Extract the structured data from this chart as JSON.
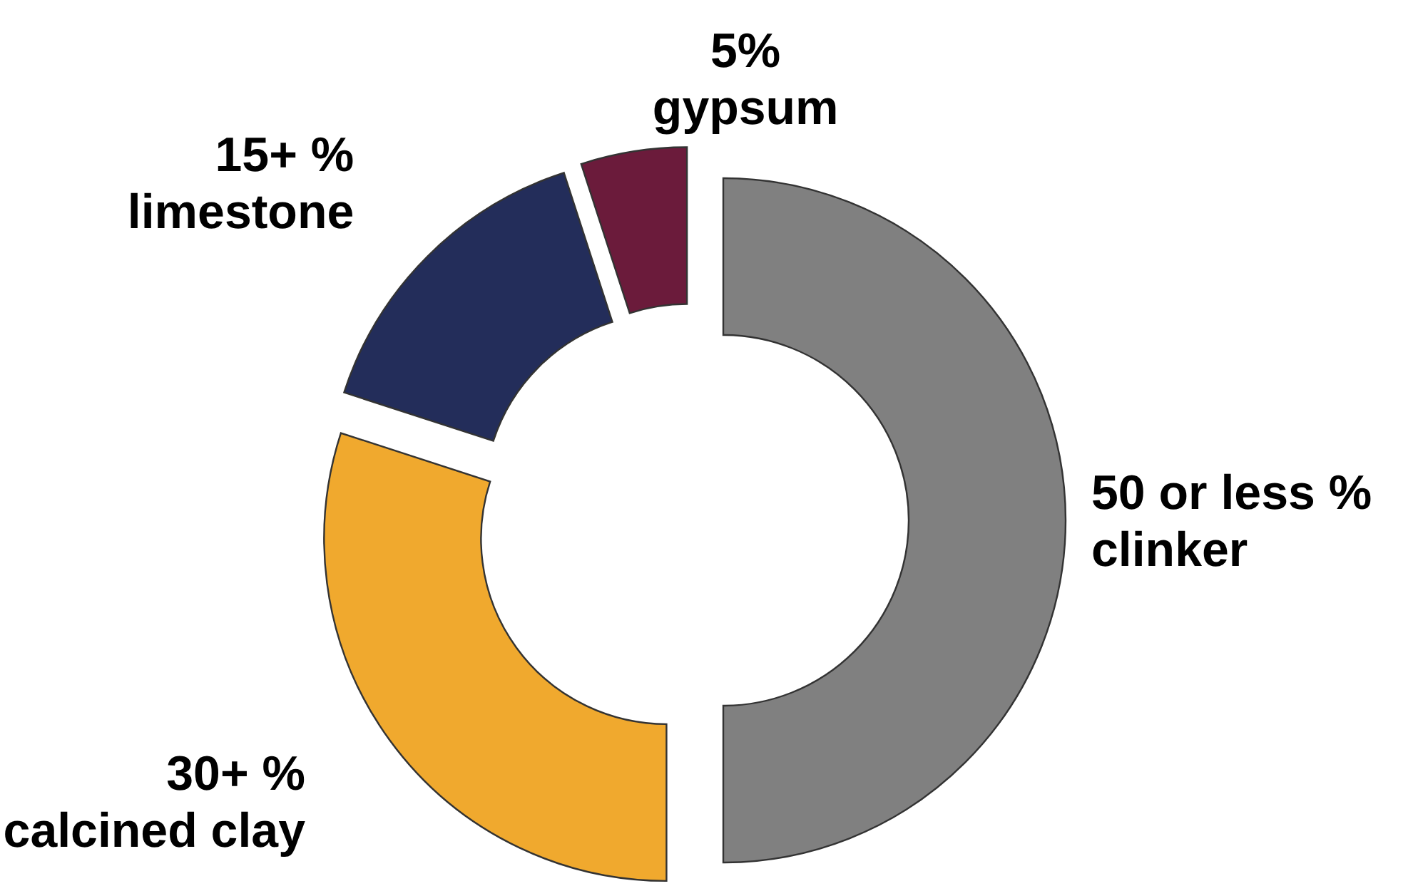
{
  "chart_data": {
    "type": "donut",
    "categories": [
      "clinker",
      "calcined clay",
      "limestone",
      "gypsum"
    ],
    "values": [
      50,
      30,
      15,
      5
    ],
    "value_labels": [
      "50 or less %",
      "30+ %",
      "15+ %",
      "5%"
    ],
    "colors": [
      "#808080",
      "#f0a92e",
      "#232d5a",
      "#6b1b3b"
    ]
  }
}
